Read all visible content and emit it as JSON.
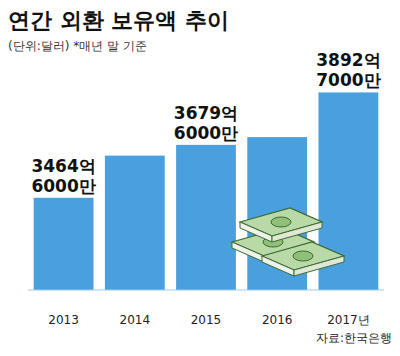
{
  "chart_data": {
    "type": "bar",
    "title": "연간 외환 보유액 추이",
    "subtitle": "(단위:달러) *매년 말 기준",
    "source": "자료:한국은행",
    "categories": [
      "2013",
      "2014",
      "2015",
      "2016",
      "2017년"
    ],
    "values": [
      346460000000,
      363590000000,
      367960000000,
      371100000000,
      389270000000
    ],
    "value_labels": [
      "3464억 6000만",
      null,
      "3679억 6000만",
      null,
      "3892억 7000만"
    ],
    "color": "#4aa0de",
    "ylim": [
      309000000000,
      400000000000
    ],
    "tick_labels": false,
    "data_labels": true
  }
}
